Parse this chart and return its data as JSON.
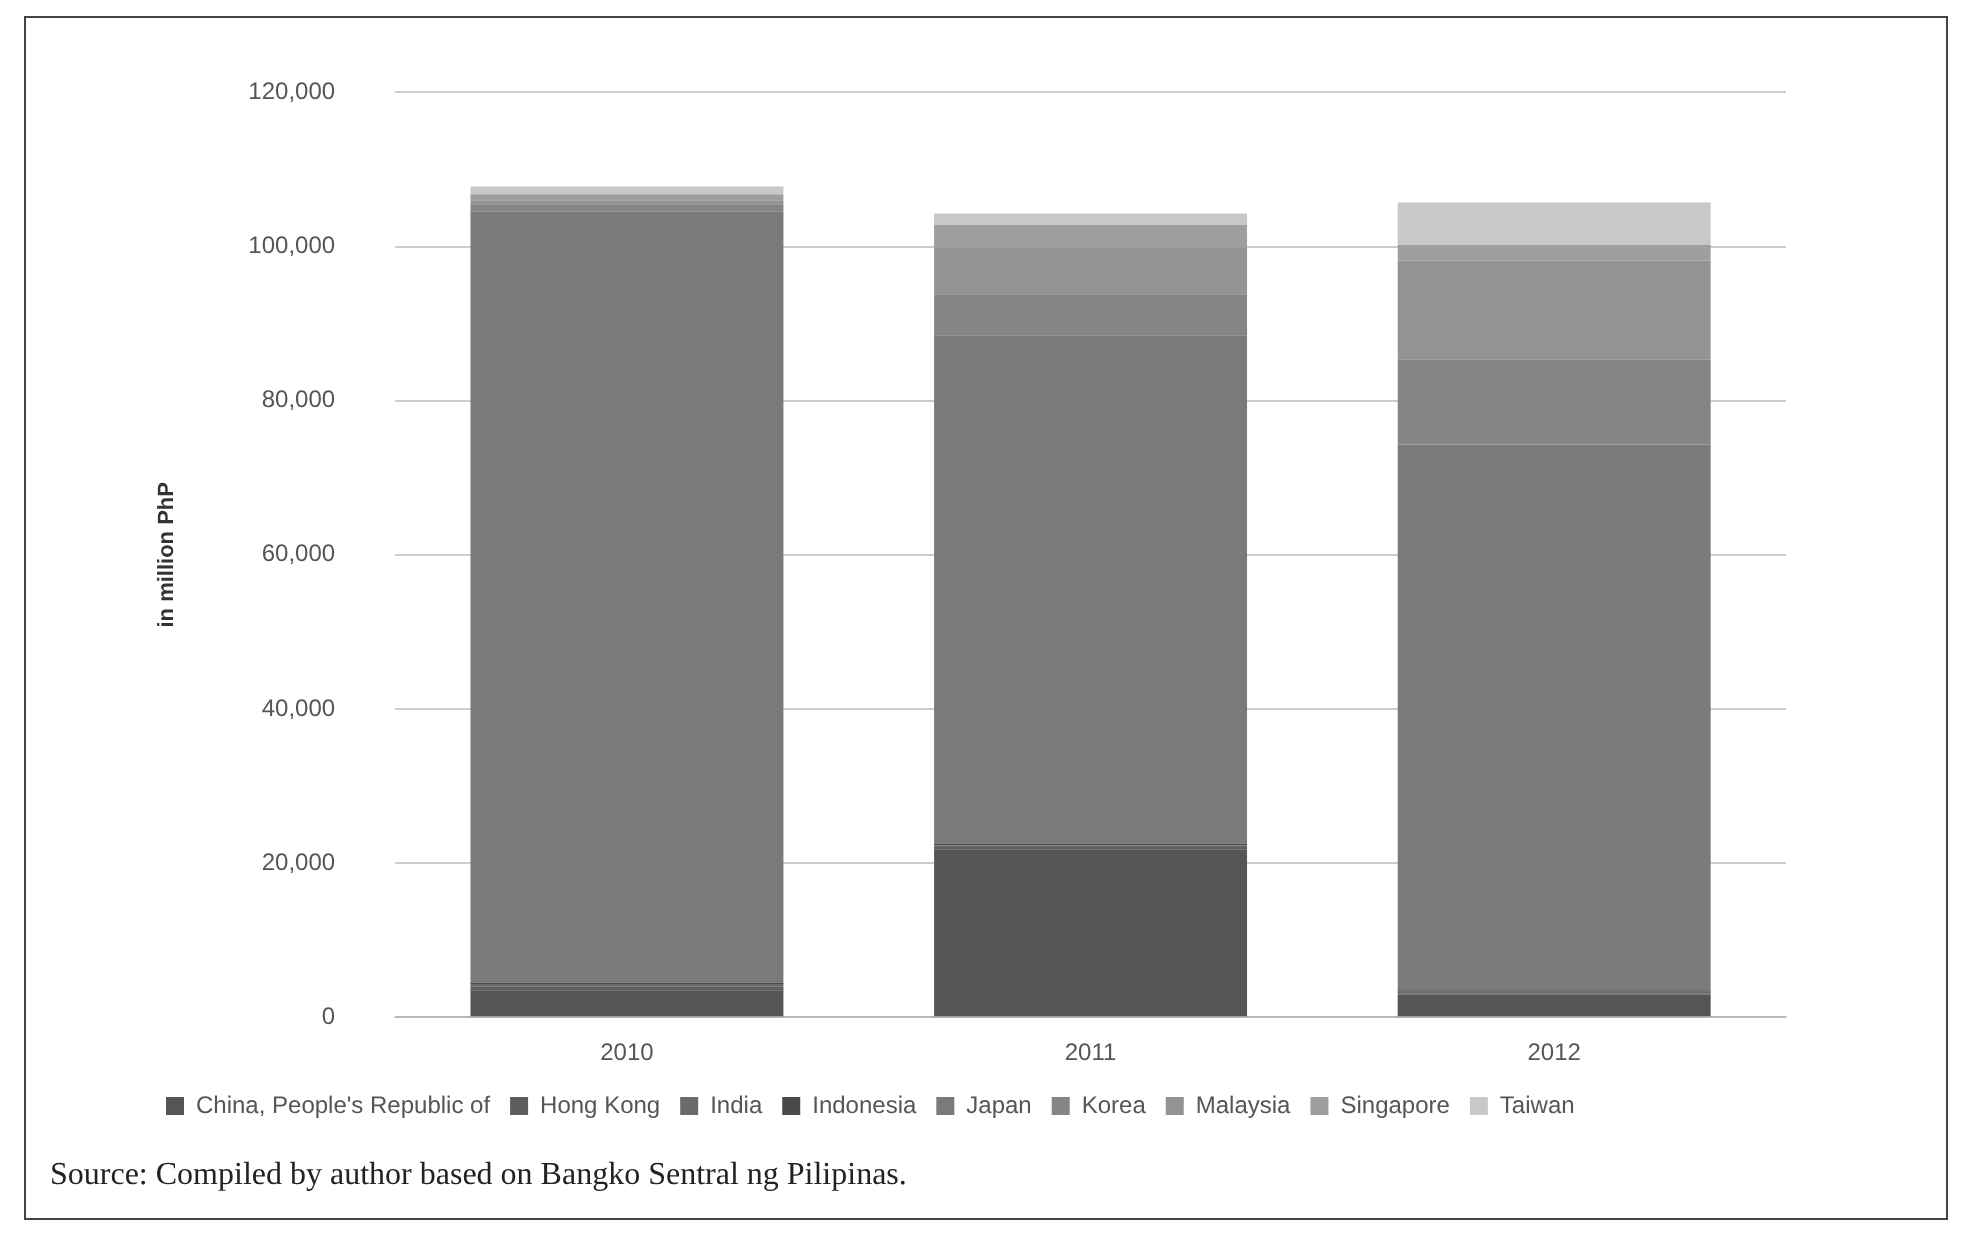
{
  "chart_data": {
    "type": "bar",
    "stacked": true,
    "ylabel": "in million PhP",
    "categories": [
      "2010",
      "2011",
      "2012"
    ],
    "series": [
      {
        "name": "China, People's Republic of",
        "color": "#555555",
        "values": [
          3500,
          21800,
          2900
        ]
      },
      {
        "name": "Hong Kong",
        "color": "#5e5e5e",
        "values": [
          500,
          300,
          200
        ]
      },
      {
        "name": "India",
        "color": "#6a6a6a",
        "values": [
          300,
          200,
          200
        ]
      },
      {
        "name": "Indonesia",
        "color": "#4a4a4a",
        "values": [
          200,
          200,
          200
        ]
      },
      {
        "name": "Japan",
        "color": "#7a7a7a",
        "values": [
          100000,
          66000,
          70800
        ]
      },
      {
        "name": "Korea",
        "color": "#858585",
        "values": [
          1000,
          5300,
          11000
        ]
      },
      {
        "name": "Malaysia",
        "color": "#939393",
        "values": [
          500,
          6000,
          12900
        ]
      },
      {
        "name": "Singapore",
        "color": "#9e9e9e",
        "values": [
          800,
          3000,
          2000
        ]
      },
      {
        "name": "Taiwan",
        "color": "#c8c8c8",
        "values": [
          1000,
          1500,
          5500
        ]
      }
    ],
    "ylim": [
      0,
      120000
    ],
    "yticks": [
      0,
      {
        "value": 20000,
        "label": "20,000"
      },
      {
        "value": 40000,
        "label": "40,000"
      },
      {
        "value": 60000,
        "label": "60,000"
      },
      {
        "value": 80000,
        "label": "80,000"
      },
      {
        "value": 100000,
        "label": "100,000"
      },
      {
        "value": 120000,
        "label": "120,000"
      }
    ],
    "grid": "y",
    "legend": "bottom",
    "annotations": [
      "Source: Compiled by author based on Bangko Sentral ng Pilipinas."
    ]
  }
}
